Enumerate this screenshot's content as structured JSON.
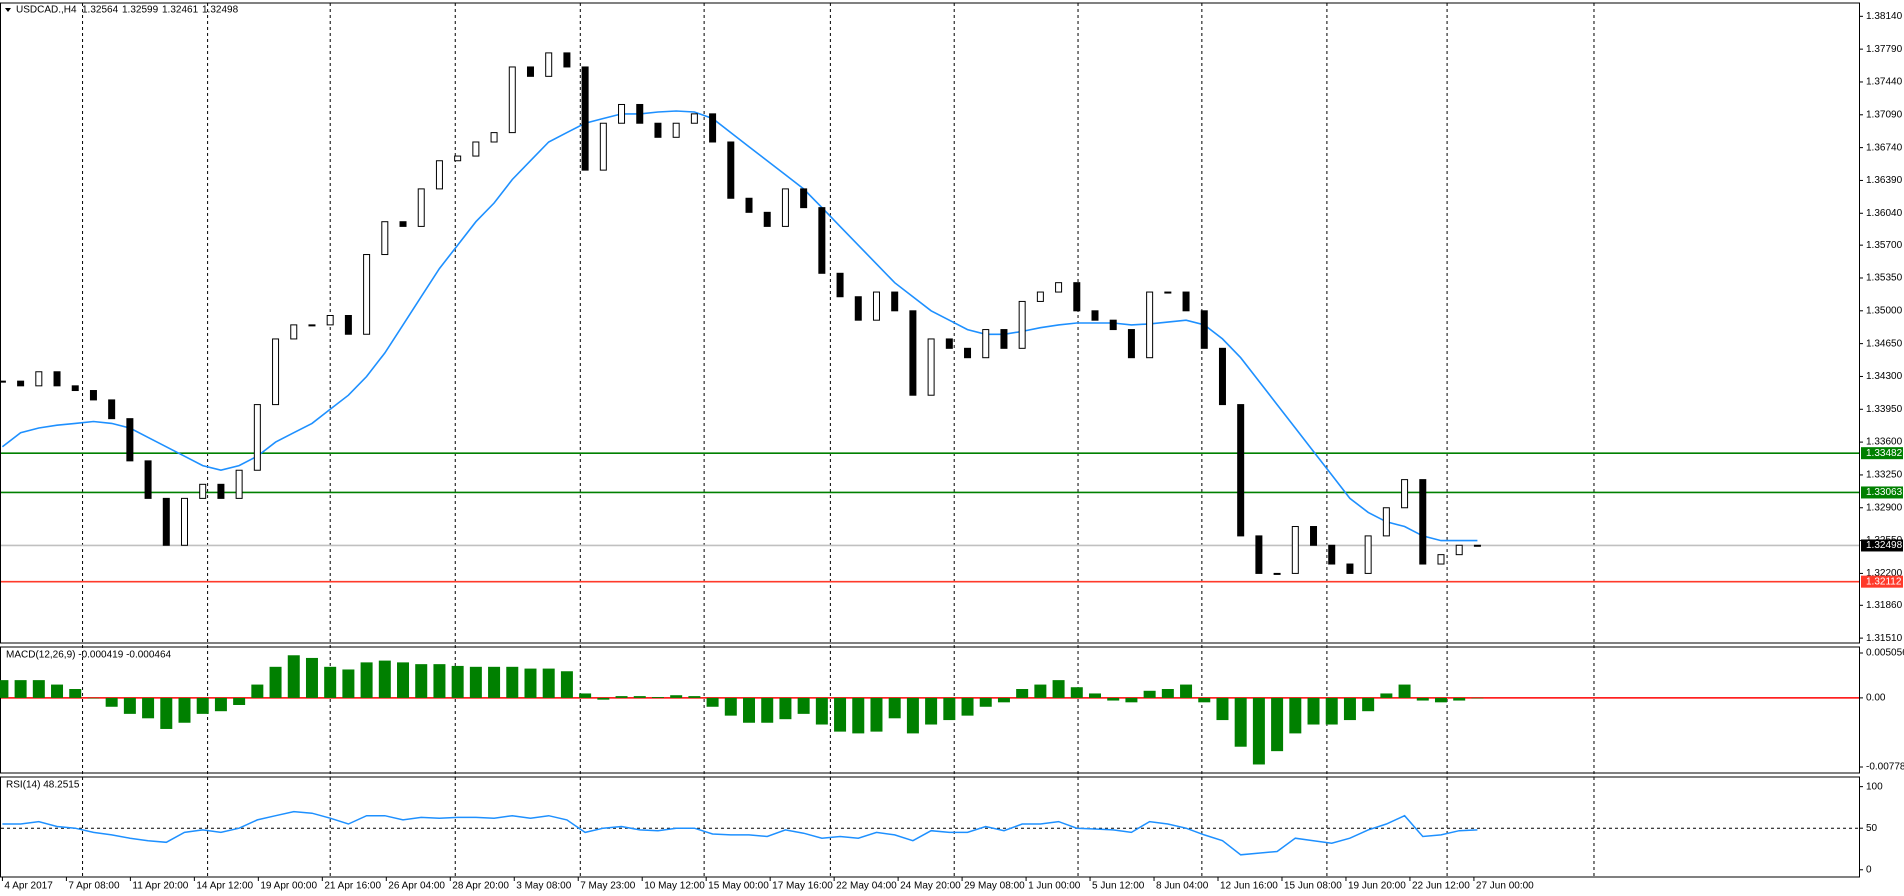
{
  "header": {
    "symbol": "USDCAD.,H4",
    "ohlc": [
      1.32564,
      1.32599,
      1.32461,
      1.32498
    ]
  },
  "x_labels": [
    "4 Apr 2017",
    "7 Apr 08:00",
    "11 Apr 20:00",
    "14 Apr 12:00",
    "19 Apr 00:00",
    "21 Apr 16:00",
    "26 Apr 04:00",
    "28 Apr 20:00",
    "3 May 08:00",
    "7 May 23:00",
    "10 May 12:00",
    "15 May 00:00",
    "17 May 16:00",
    "22 May 04:00",
    "24 May 20:00",
    "29 May 08:00",
    "1 Jun 00:00",
    "5 Jun 12:00",
    "8 Jun 04:00",
    "12 Jun 16:00",
    "15 Jun 08:00",
    "19 Jun 20:00",
    "22 Jun 12:00",
    "27 Jun 00:00"
  ],
  "chart_data": [
    {
      "type": "candlestick",
      "values": [
        1.3425,
        1.342,
        1.3435,
        1.342,
        1.3415,
        1.3405,
        1.3385,
        1.334,
        1.33,
        1.325,
        1.33,
        1.3315,
        1.33,
        1.333,
        1.34,
        1.347,
        1.3485,
        1.3485,
        1.3495,
        1.3475,
        1.356,
        1.3595,
        1.359,
        1.363,
        1.366,
        1.3665,
        1.368,
        1.369,
        1.376,
        1.375,
        1.3775,
        1.376,
        1.365,
        1.37,
        1.372,
        1.37,
        1.3685,
        1.37,
        1.371,
        1.368,
        1.362,
        1.3605,
        1.359,
        1.363,
        1.361,
        1.354,
        1.3515,
        1.349,
        1.352,
        1.35,
        1.341,
        1.347,
        1.346,
        1.345,
        1.348,
        1.346,
        1.351,
        1.352,
        1.353,
        1.35,
        1.349,
        1.348,
        1.345,
        1.352,
        1.352,
        1.35,
        1.346,
        1.34,
        1.326,
        1.322,
        1.322,
        1.327,
        1.325,
        1.323,
        1.322,
        1.326,
        1.329,
        1.332,
        1.323,
        1.324,
        1.325,
        1.325
      ],
      "ma_color": "#1e90ff",
      "ma_values": [
        1.3355,
        1.337,
        1.3375,
        1.3378,
        1.338,
        1.3382,
        1.338,
        1.3375,
        1.3365,
        1.3355,
        1.3345,
        1.3335,
        1.333,
        1.3335,
        1.3345,
        1.336,
        1.337,
        1.338,
        1.3395,
        1.341,
        1.343,
        1.3455,
        1.3485,
        1.3515,
        1.3545,
        1.357,
        1.3595,
        1.3615,
        1.364,
        1.366,
        1.368,
        1.369,
        1.37,
        1.3705,
        1.371,
        1.371,
        1.3712,
        1.3713,
        1.3712,
        1.3705,
        1.369,
        1.3675,
        1.366,
        1.3645,
        1.363,
        1.361,
        1.359,
        1.357,
        1.355,
        1.353,
        1.3515,
        1.35,
        1.349,
        1.348,
        1.3475,
        1.3475,
        1.3478,
        1.3482,
        1.3485,
        1.3487,
        1.3487,
        1.3487,
        1.3485,
        1.3486,
        1.3488,
        1.349,
        1.3485,
        1.347,
        1.345,
        1.3425,
        1.34,
        1.3375,
        1.335,
        1.3325,
        1.33,
        1.3285,
        1.3275,
        1.327,
        1.326,
        1.3255,
        1.3255,
        1.3255
      ],
      "ylim": [
        1.31458,
        1.38282
      ],
      "yticks": [
        {
          "value": 1.3814,
          "label": "1.38140"
        },
        {
          "value": 1.3779,
          "label": "1.37790"
        },
        {
          "value": 1.3744,
          "label": "1.37440"
        },
        {
          "value": 1.3709,
          "label": "1.37090"
        },
        {
          "value": 1.3674,
          "label": "1.36740"
        },
        {
          "value": 1.3639,
          "label": "1.36390"
        },
        {
          "value": 1.3604,
          "label": "1.36040"
        },
        {
          "value": 1.357,
          "label": "1.35700"
        },
        {
          "value": 1.3535,
          "label": "1.35350"
        },
        {
          "value": 1.35,
          "label": "1.35000"
        },
        {
          "value": 1.3465,
          "label": "1.34650"
        },
        {
          "value": 1.343,
          "label": "1.34300"
        },
        {
          "value": 1.3395,
          "label": "1.33950"
        },
        {
          "value": 1.336,
          "label": "1.33600"
        },
        {
          "value": 1.3325,
          "label": "1.33250"
        },
        {
          "value": 1.329,
          "label": "1.32900"
        },
        {
          "value": 1.3255,
          "label": "1.32550"
        },
        {
          "value": 1.322,
          "label": "1.32200"
        },
        {
          "value": 1.3186,
          "label": "1.31860"
        },
        {
          "value": 1.3151,
          "label": "1.31510"
        }
      ],
      "levels": [
        {
          "value": 1.33482,
          "color": "#008000",
          "box": "#008000"
        },
        {
          "value": 1.33063,
          "color": "#008000",
          "box": "#008000"
        },
        {
          "value": 1.32498,
          "color": "#c0c0c0",
          "box": "#000000"
        },
        {
          "value": 1.32112,
          "color": "#ff3a2a",
          "box": "#ff3a2a"
        }
      ]
    },
    {
      "type": "bar",
      "title": "MACD(12,26,9) -0.000419 -0.000464",
      "color": "#008000",
      "values": [
        0.002,
        0.002,
        0.002,
        0.0015,
        0.001,
        0,
        -0.001,
        -0.0018,
        -0.0023,
        -0.0035,
        -0.0028,
        -0.0018,
        -0.0015,
        -0.0008,
        0.0015,
        0.0035,
        0.0048,
        0.0045,
        0.0035,
        0.0032,
        0.004,
        0.0042,
        0.004,
        0.0038,
        0.0038,
        0.0036,
        0.0035,
        0.0035,
        0.0035,
        0.0033,
        0.0033,
        0.003,
        0.0005,
        -0.0002,
        0.0002,
        0.0002,
        0.0001,
        0.0003,
        0.0002,
        -0.001,
        -0.002,
        -0.0028,
        -0.0028,
        -0.0024,
        -0.0018,
        -0.003,
        -0.0038,
        -0.004,
        -0.0038,
        -0.0023,
        -0.004,
        -0.003,
        -0.0025,
        -0.002,
        -0.001,
        -0.0005,
        0.001,
        0.0015,
        0.002,
        0.0012,
        0.0005,
        -0.0003,
        -0.0005,
        0.0008,
        0.001,
        0.0015,
        -0.0005,
        -0.0025,
        -0.0055,
        -0.0075,
        -0.006,
        -0.004,
        -0.003,
        -0.003,
        -0.0025,
        -0.0015,
        0.0005,
        0.0015,
        -0.0003,
        -0.0005,
        -0.0003,
        0
      ],
      "ylim": [
        -0.008461,
        0.005732
      ],
      "yticks": [
        0.005056,
        {
          "value": 0,
          "label": "0.00"
        },
        -0.007785
      ],
      "levels": [
        {
          "value": 0,
          "color": "#ff0000"
        }
      ]
    },
    {
      "type": "line",
      "title": "RSI(14) 48.2515",
      "color": "#1e90ff",
      "values": [
        55,
        55,
        58,
        52,
        50,
        45,
        42,
        38,
        35,
        33,
        45,
        48,
        45,
        50,
        60,
        65,
        70,
        68,
        62,
        55,
        65,
        65,
        60,
        63,
        62,
        63,
        63,
        62,
        65,
        62,
        65,
        60,
        45,
        50,
        52,
        48,
        47,
        50,
        50,
        43,
        42,
        42,
        40,
        48,
        44,
        38,
        40,
        38,
        45,
        42,
        35,
        47,
        45,
        45,
        52,
        47,
        55,
        55,
        58,
        50,
        49,
        48,
        45,
        58,
        55,
        50,
        42,
        35,
        18,
        20,
        22,
        38,
        35,
        32,
        38,
        48,
        55,
        65,
        40,
        42,
        47,
        48
      ],
      "ylim": [
        -8.7,
        111.6
      ],
      "yticks": [
        100,
        50,
        0
      ],
      "levels": [
        {
          "value": 50,
          "color": "#000000",
          "dash": true
        }
      ]
    }
  ]
}
